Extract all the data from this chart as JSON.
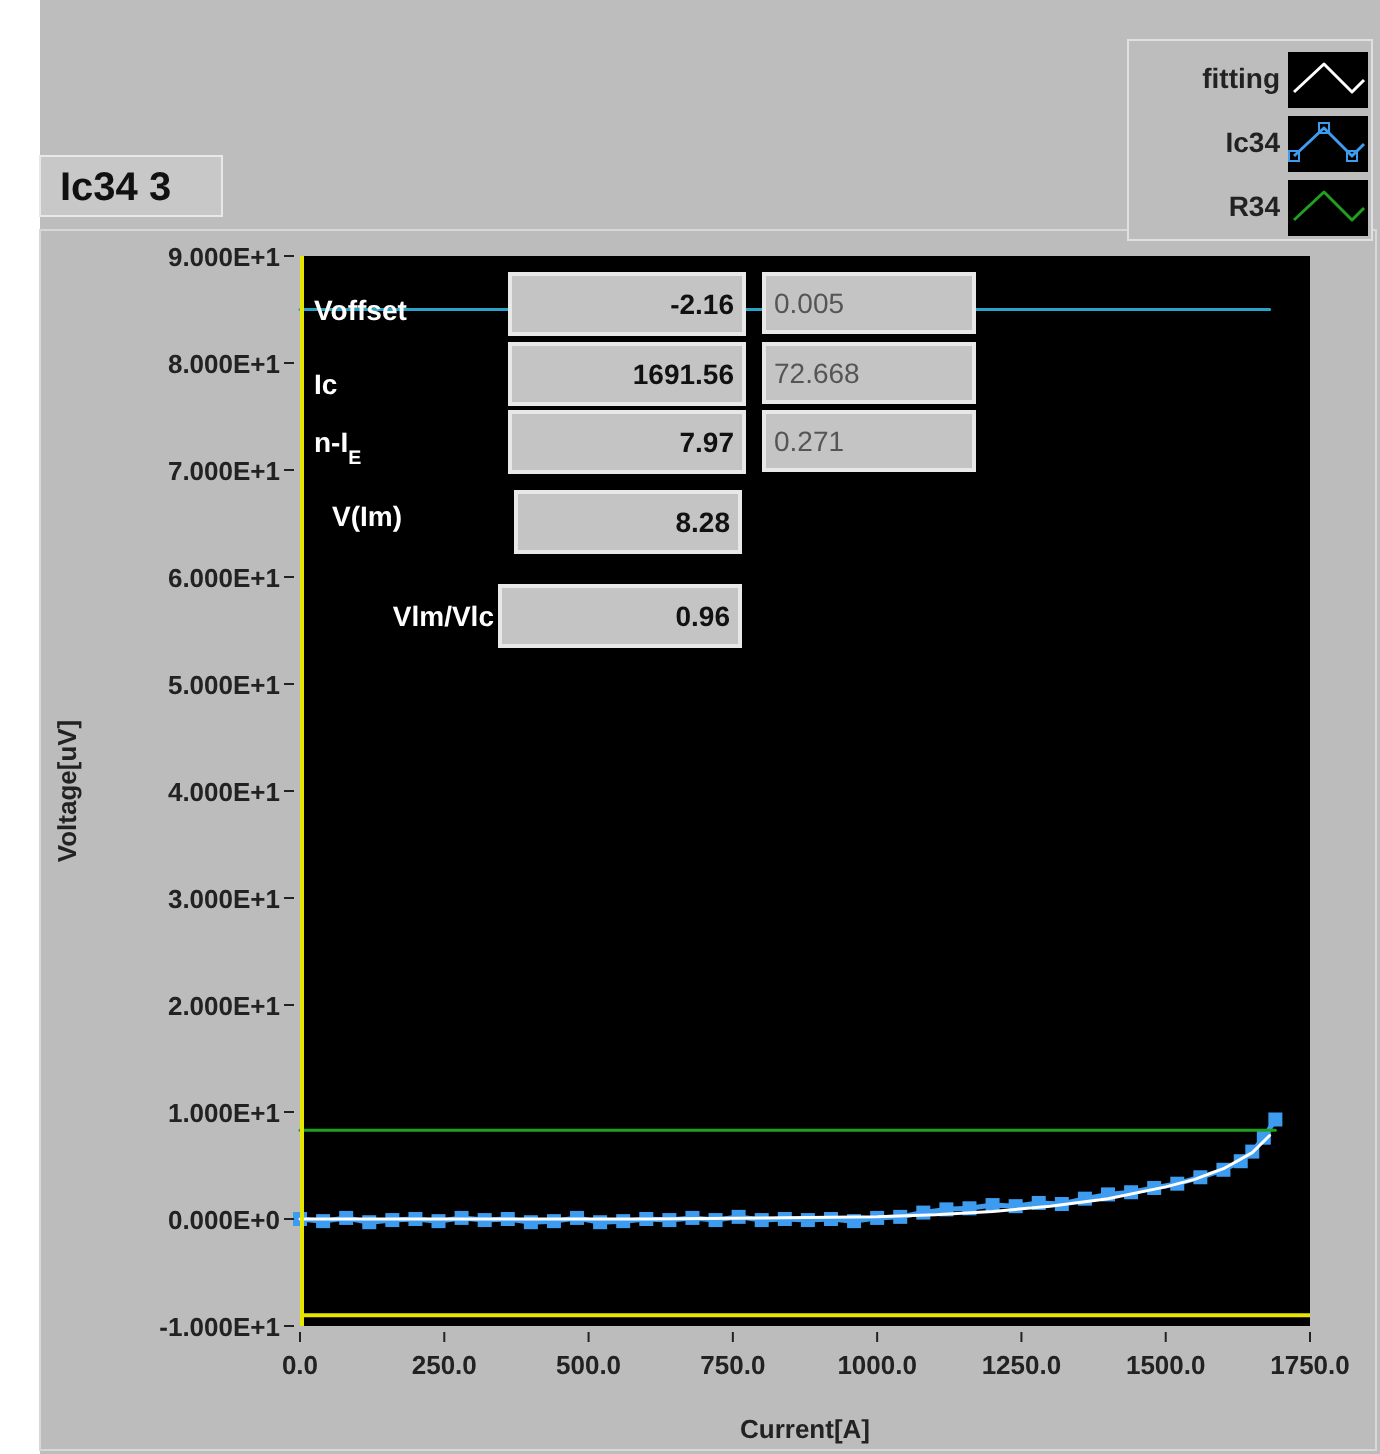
{
  "chart_data": {
    "type": "line",
    "title": "Ic34  3",
    "xlabel": "Current[A]",
    "ylabel": "Voltage[uV]",
    "xlim": [
      0,
      1750
    ],
    "ylim": [
      -10,
      90
    ],
    "xticks": [
      {
        "value": 0,
        "label": "0.0"
      },
      {
        "value": 250,
        "label": "250.0"
      },
      {
        "value": 500,
        "label": "500.0"
      },
      {
        "value": 750,
        "label": "750.0"
      },
      {
        "value": 1000,
        "label": "1000.0"
      },
      {
        "value": 1250,
        "label": "1250.0"
      },
      {
        "value": 1500,
        "label": "1500.0"
      },
      {
        "value": 1750,
        "label": "1750.0"
      }
    ],
    "yticks": [
      {
        "value": -10,
        "label": "-1.000E+1"
      },
      {
        "value": 0,
        "label": "0.000E+0"
      },
      {
        "value": 10,
        "label": "1.000E+1"
      },
      {
        "value": 20,
        "label": "2.000E+1"
      },
      {
        "value": 30,
        "label": "3.000E+1"
      },
      {
        "value": 40,
        "label": "4.000E+1"
      },
      {
        "value": 50,
        "label": "5.000E+1"
      },
      {
        "value": 60,
        "label": "6.000E+1"
      },
      {
        "value": 70,
        "label": "7.000E+1"
      },
      {
        "value": 80,
        "label": "8.000E+1"
      },
      {
        "value": 90,
        "label": "9.000E+1"
      }
    ],
    "grid": false,
    "legend": "top right",
    "series": [
      {
        "name": "Ic34",
        "color": "#3d9cf0",
        "marker": "square",
        "x": [
          0,
          40,
          80,
          120,
          160,
          200,
          240,
          280,
          320,
          360,
          400,
          440,
          480,
          520,
          560,
          600,
          640,
          680,
          720,
          760,
          800,
          840,
          880,
          920,
          960,
          1000,
          1040,
          1080,
          1120,
          1160,
          1200,
          1240,
          1280,
          1320,
          1360,
          1400,
          1440,
          1480,
          1520,
          1560,
          1600,
          1630,
          1650,
          1670,
          1690
        ],
        "values": [
          0.0,
          -0.2,
          0.1,
          -0.3,
          -0.1,
          0.0,
          -0.2,
          0.1,
          -0.1,
          0.0,
          -0.3,
          -0.2,
          0.1,
          -0.3,
          -0.2,
          0.0,
          -0.1,
          0.1,
          -0.1,
          0.2,
          -0.1,
          0.0,
          -0.1,
          0.0,
          -0.2,
          0.1,
          0.2,
          0.6,
          0.9,
          1.0,
          1.3,
          1.2,
          1.5,
          1.4,
          1.9,
          2.3,
          2.5,
          2.9,
          3.3,
          3.9,
          4.6,
          5.4,
          6.3,
          7.6,
          9.3
        ]
      },
      {
        "name": "fitting",
        "color": "#ffffff",
        "marker": "none",
        "x": [
          0,
          200,
          400,
          600,
          800,
          1000,
          1100,
          1200,
          1300,
          1400,
          1500,
          1550,
          1600,
          1650,
          1680
        ],
        "values": [
          0,
          0,
          0,
          0,
          0.1,
          0.2,
          0.4,
          0.7,
          1.2,
          1.9,
          3.0,
          3.7,
          4.7,
          6.2,
          7.8
        ]
      },
      {
        "name": "R34",
        "color": "#1fa01f",
        "marker": "none",
        "x": [
          0,
          1690
        ],
        "values": [
          8.3,
          8.3
        ]
      },
      {
        "color": "#2aa3c9",
        "marker": "none",
        "x": [
          0,
          1680
        ],
        "values": [
          85,
          85
        ]
      }
    ],
    "ref_lines": [
      {
        "axis": "y",
        "value": -9,
        "color": "#e6e600"
      }
    ],
    "annotations": [
      "Voffset",
      "-2.16",
      "0.005",
      "Ic",
      "1691.56",
      "72.668",
      "n-I$_{E}$",
      "7.97",
      "0.271",
      "V(Im)",
      "8.28",
      "Vlm/Vlc",
      "0.96"
    ]
  }
}
